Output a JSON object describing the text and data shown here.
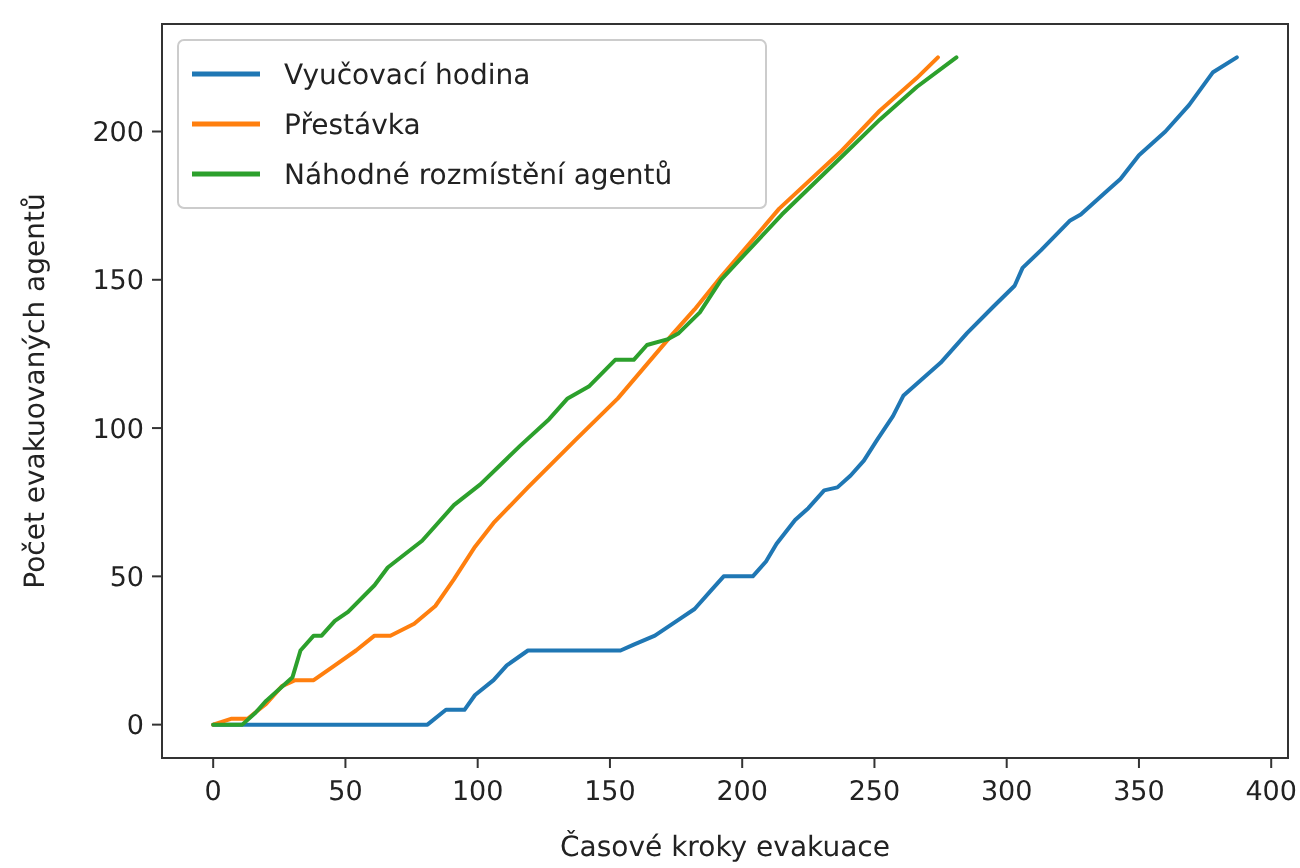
{
  "chart_data": {
    "type": "line",
    "xlabel": "Časové kroky evakuace",
    "ylabel": "Počet evakuovaných agentů",
    "xlim": [
      -19.35,
      406.35
    ],
    "ylim": [
      -11.25,
      236.25
    ],
    "xticks": [
      0,
      50,
      100,
      150,
      200,
      250,
      300,
      350,
      400
    ],
    "yticks": [
      0,
      50,
      100,
      150,
      200
    ],
    "grid": false,
    "legend": "top left",
    "series": [
      {
        "name": "Vyučovací hodina",
        "color": "#1f77b4",
        "x": [
          0,
          81,
          88,
          95,
          99,
          106,
          111,
          119,
          154,
          159,
          167,
          177,
          182,
          188,
          193,
          204,
          209,
          213,
          220,
          225,
          231,
          236,
          241,
          246,
          251,
          257,
          261,
          275,
          285,
          295,
          303,
          306,
          313,
          324,
          328,
          338,
          343,
          350,
          360,
          369,
          378,
          387
        ],
        "values": [
          0,
          0,
          5,
          5,
          10,
          15,
          20,
          25,
          25,
          27,
          30,
          36,
          39,
          45,
          50,
          50,
          55,
          61,
          69,
          73,
          79,
          80,
          84,
          89,
          96,
          104,
          111,
          122,
          132,
          141,
          148,
          154,
          160,
          170,
          172,
          180,
          184,
          192,
          200,
          209,
          220,
          225
        ]
      },
      {
        "name": "Přestávka",
        "color": "#ff7f0e",
        "x": [
          0,
          7,
          13,
          20,
          26,
          31,
          38,
          46,
          54,
          61,
          67,
          76,
          84,
          91,
          99,
          106,
          119,
          137,
          153,
          174,
          182,
          192,
          214,
          237,
          252,
          266,
          274
        ],
        "values": [
          0,
          2,
          2,
          7,
          13,
          15,
          15,
          20,
          25,
          30,
          30,
          34,
          40,
          49,
          60,
          68,
          80,
          96,
          110,
          132,
          140,
          151,
          174,
          193,
          207,
          218,
          225
        ]
      },
      {
        "name": "Náhodné rozmístění agentů",
        "color": "#2ca02c",
        "x": [
          0,
          11,
          16,
          20,
          30,
          33,
          38,
          41,
          46,
          51,
          61,
          66,
          79,
          91,
          101,
          116,
          127,
          134,
          142,
          152,
          159,
          164,
          172,
          176,
          184,
          192,
          215,
          237,
          252,
          266,
          281
        ],
        "values": [
          0,
          0,
          4,
          8,
          16,
          25,
          30,
          30,
          35,
          38,
          47,
          53,
          62,
          74,
          81,
          94,
          103,
          110,
          114,
          123,
          123,
          128,
          130,
          132,
          139,
          150,
          172,
          191,
          204,
          215,
          225
        ]
      }
    ]
  }
}
